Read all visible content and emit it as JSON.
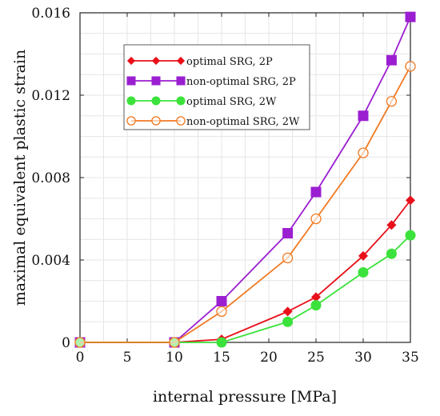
{
  "chart_data": {
    "type": "line",
    "title": "",
    "xlabel": "internal pressure [MPa]",
    "ylabel": "maximal equivalent plastic strain",
    "xlim": [
      0,
      35
    ],
    "ylim": [
      0,
      0.016
    ],
    "xticks": [
      "0",
      "5",
      "10",
      "15",
      "20",
      "25",
      "30",
      "35"
    ],
    "yticks": [
      "0",
      "0.004",
      "0.008",
      "0.012",
      "0.016"
    ],
    "grid": true,
    "legend_position": "top-left",
    "series": [
      {
        "name": "optimal SRG, 2P",
        "color": "#e8101a",
        "marker": "diamond",
        "x": [
          0,
          10,
          15,
          22,
          25,
          30,
          33,
          35
        ],
        "y": [
          0,
          0,
          0.00015,
          0.0015,
          0.0022,
          0.0042,
          0.0057,
          0.0069
        ]
      },
      {
        "name": "non-optimal SRG, 2P",
        "color": "#9b1fd1",
        "marker": "square",
        "x": [
          0,
          10,
          15,
          22,
          25,
          30,
          33,
          35
        ],
        "y": [
          0,
          0,
          0.002,
          0.0053,
          0.0073,
          0.011,
          0.0137,
          0.0158
        ]
      },
      {
        "name": "optimal SRG, 2W",
        "color": "#3be23b",
        "marker": "circle",
        "x": [
          0,
          10,
          15,
          22,
          25,
          30,
          33,
          35
        ],
        "y": [
          0,
          0,
          0.0,
          0.001,
          0.0018,
          0.0034,
          0.0043,
          0.0052
        ]
      },
      {
        "name": "non-optimal SRG, 2W",
        "color": "#f07a22",
        "marker": "open-circle",
        "x": [
          0,
          10,
          15,
          22,
          25,
          30,
          33,
          35
        ],
        "y": [
          0,
          0,
          0.0015,
          0.0041,
          0.006,
          0.0092,
          0.0117,
          0.0134
        ]
      }
    ]
  }
}
